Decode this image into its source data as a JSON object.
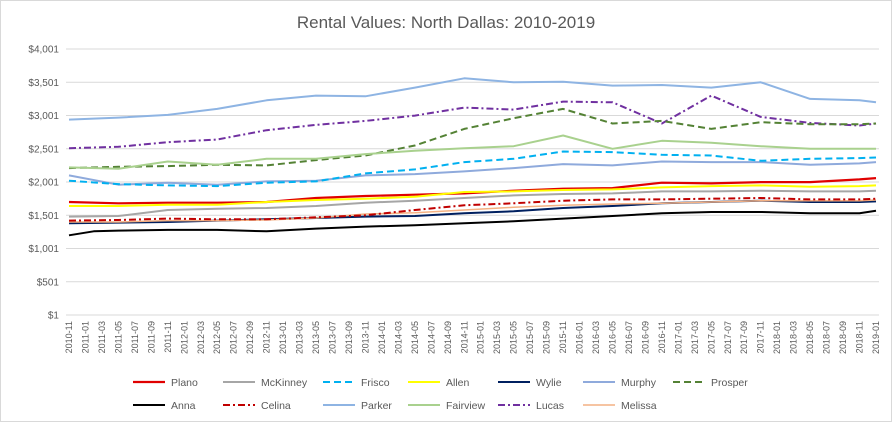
{
  "chart_data": {
    "type": "line",
    "title": "Rental Values: North Dallas: 2010-2019",
    "xlabel": "",
    "ylabel": "",
    "ylim": [
      1,
      4001
    ],
    "yticks": [
      "$1",
      "$501",
      "$1,001",
      "$1,501",
      "$2,001",
      "$2,501",
      "$3,001",
      "$3,501",
      "$4,001"
    ],
    "ytick_values": [
      1,
      501,
      1001,
      1501,
      2001,
      2501,
      3001,
      3501,
      4001
    ],
    "grid": "horizontal",
    "legend_position": "bottom",
    "x_labels": [
      "2010-11",
      "2011-01",
      "2011-03",
      "2011-05",
      "2011-07",
      "2011-09",
      "2011-11",
      "2012-01",
      "2012-03",
      "2012-05",
      "2012-07",
      "2012-09",
      "2012-11",
      "2013-01",
      "2013-03",
      "2013-05",
      "2013-07",
      "2013-09",
      "2013-11",
      "2014-01",
      "2014-03",
      "2014-05",
      "2014-07",
      "2014-09",
      "2014-11",
      "2015-01",
      "2015-03",
      "2015-05",
      "2015-07",
      "2015-09",
      "2015-11",
      "2016-01",
      "2016-03",
      "2016-05",
      "2016-07",
      "2016-09",
      "2016-11",
      "2017-01",
      "2017-03",
      "2017-05",
      "2017-07",
      "2017-09",
      "2017-11",
      "2018-01",
      "2018-03",
      "2018-05",
      "2018-07",
      "2018-09",
      "2018-11",
      "2019-01"
    ],
    "x_label_months": [
      0,
      2,
      4,
      6,
      8,
      10,
      12,
      14,
      16,
      18,
      20,
      22,
      24,
      26,
      28,
      30,
      32,
      34,
      36,
      38,
      40,
      42,
      44,
      46,
      48,
      50,
      52,
      54,
      56,
      58,
      60,
      62,
      64,
      66,
      68,
      70,
      72,
      74,
      76,
      78,
      80,
      82,
      84,
      86,
      88,
      90,
      92,
      94,
      96,
      98
    ],
    "series": [
      {
        "name": "Plano",
        "color": "#e00000",
        "dash": "solid",
        "width": 2.2,
        "x": [
          0,
          6,
          12,
          18,
          24,
          30,
          36,
          42,
          48,
          54,
          60,
          66,
          72,
          78,
          84,
          90,
          96,
          98
        ],
        "y": [
          1700,
          1680,
          1690,
          1690,
          1700,
          1760,
          1790,
          1810,
          1830,
          1870,
          1900,
          1910,
          1990,
          1980,
          2000,
          2000,
          2040,
          2060
        ]
      },
      {
        "name": "Parker",
        "color": "#8eb4e3",
        "dash": "solid",
        "width": 2,
        "x": [
          0,
          6,
          12,
          18,
          24,
          30,
          36,
          42,
          48,
          54,
          60,
          66,
          72,
          78,
          84,
          90,
          96,
          98
        ],
        "y": [
          2940,
          2970,
          3010,
          3100,
          3230,
          3300,
          3290,
          3420,
          3560,
          3500,
          3510,
          3450,
          3460,
          3420,
          3500,
          3250,
          3230,
          3200
        ]
      },
      {
        "name": "Lucas",
        "color": "#7030a0",
        "dash": "dashdot",
        "width": 2,
        "x": [
          0,
          6,
          12,
          18,
          24,
          30,
          36,
          42,
          48,
          54,
          60,
          66,
          72,
          78,
          84,
          90,
          96,
          98
        ],
        "y": [
          2510,
          2530,
          2600,
          2640,
          2780,
          2860,
          2920,
          3000,
          3120,
          3090,
          3210,
          3200,
          2880,
          3300,
          2980,
          2890,
          2850,
          2880
        ]
      },
      {
        "name": "Prosper",
        "color": "#548235",
        "dash": "dash",
        "width": 2,
        "x": [
          0,
          6,
          12,
          18,
          24,
          30,
          36,
          42,
          48,
          54,
          60,
          66,
          72,
          78,
          84,
          90,
          96,
          98
        ],
        "y": [
          2210,
          2230,
          2240,
          2260,
          2250,
          2330,
          2400,
          2550,
          2800,
          2960,
          3100,
          2880,
          2920,
          2800,
          2900,
          2870,
          2870,
          2880
        ]
      },
      {
        "name": "Fairview",
        "color": "#a9d18e",
        "dash": "solid",
        "width": 2,
        "x": [
          0,
          6,
          12,
          18,
          24,
          30,
          36,
          42,
          48,
          54,
          60,
          66,
          72,
          78,
          84,
          90,
          96,
          98
        ],
        "y": [
          2220,
          2200,
          2310,
          2260,
          2350,
          2350,
          2420,
          2470,
          2510,
          2540,
          2700,
          2500,
          2620,
          2590,
          2540,
          2500,
          2500,
          2500
        ]
      },
      {
        "name": "Murphy",
        "color": "#8faadc",
        "dash": "solid",
        "width": 2,
        "x": [
          0,
          6,
          12,
          18,
          24,
          30,
          36,
          42,
          48,
          54,
          60,
          66,
          72,
          78,
          84,
          90,
          96,
          98
        ],
        "y": [
          2100,
          1960,
          1990,
          1960,
          2010,
          2020,
          2100,
          2120,
          2160,
          2210,
          2270,
          2250,
          2310,
          2300,
          2300,
          2260,
          2280,
          2300
        ]
      },
      {
        "name": "Frisco",
        "color": "#00b0f0",
        "dash": "dash",
        "width": 2,
        "x": [
          0,
          6,
          12,
          18,
          24,
          30,
          36,
          42,
          48,
          54,
          60,
          66,
          72,
          78,
          84,
          90,
          96,
          98
        ],
        "y": [
          2020,
          1970,
          1950,
          1940,
          1990,
          2010,
          2130,
          2190,
          2300,
          2350,
          2460,
          2450,
          2410,
          2400,
          2320,
          2350,
          2360,
          2370
        ]
      },
      {
        "name": "Allen",
        "color": "#ffff00",
        "dash": "solid",
        "width": 2,
        "x": [
          0,
          6,
          12,
          18,
          24,
          30,
          36,
          42,
          48,
          54,
          60,
          66,
          72,
          78,
          84,
          90,
          96,
          98
        ],
        "y": [
          1640,
          1640,
          1660,
          1660,
          1700,
          1730,
          1750,
          1780,
          1850,
          1860,
          1880,
          1890,
          1920,
          1940,
          1950,
          1930,
          1940,
          1950
        ]
      },
      {
        "name": "McKinney",
        "color": "#a6a6a6",
        "dash": "solid",
        "width": 2,
        "x": [
          0,
          6,
          12,
          18,
          24,
          30,
          36,
          42,
          48,
          54,
          60,
          66,
          72,
          78,
          84,
          90,
          96,
          98
        ],
        "y": [
          1480,
          1490,
          1580,
          1600,
          1610,
          1640,
          1690,
          1720,
          1760,
          1800,
          1820,
          1830,
          1860,
          1860,
          1870,
          1860,
          1860,
          1870
        ]
      },
      {
        "name": "Wylie",
        "color": "#002060",
        "dash": "solid",
        "width": 2,
        "x": [
          0,
          6,
          12,
          18,
          24,
          30,
          36,
          42,
          48,
          54,
          60,
          66,
          72,
          78,
          84,
          90,
          96,
          98
        ],
        "y": [
          1380,
          1390,
          1400,
          1420,
          1440,
          1460,
          1480,
          1490,
          1530,
          1560,
          1610,
          1640,
          1680,
          1700,
          1720,
          1700,
          1700,
          1710
        ]
      },
      {
        "name": "Melissa",
        "color": "#f4b183",
        "dash": "solid",
        "width": 1.5,
        "x": [
          0,
          6,
          12,
          18,
          24,
          30,
          36,
          42,
          48,
          54,
          60,
          66,
          72,
          78,
          84,
          90,
          96,
          98
        ],
        "y": [
          1400,
          1400,
          1420,
          1420,
          1430,
          1460,
          1520,
          1540,
          1580,
          1620,
          1650,
          1670,
          1680,
          1700,
          1720,
          1720,
          1720,
          1730
        ]
      },
      {
        "name": "Celina",
        "color": "#c00000",
        "dash": "dashdot",
        "width": 2,
        "x": [
          0,
          6,
          12,
          18,
          24,
          30,
          36,
          42,
          48,
          54,
          60,
          66,
          72,
          78,
          84,
          90,
          96,
          98
        ],
        "y": [
          1420,
          1430,
          1450,
          1440,
          1440,
          1470,
          1500,
          1580,
          1650,
          1680,
          1720,
          1740,
          1740,
          1750,
          1760,
          1740,
          1740,
          1750
        ]
      },
      {
        "name": "Anna",
        "color": "#000000",
        "dash": "solid",
        "width": 2,
        "x": [
          0,
          3,
          6,
          12,
          18,
          24,
          30,
          36,
          42,
          48,
          54,
          60,
          66,
          72,
          78,
          84,
          90,
          96,
          98
        ],
        "y": [
          1200,
          1260,
          1270,
          1280,
          1280,
          1260,
          1300,
          1330,
          1350,
          1380,
          1410,
          1450,
          1490,
          1530,
          1550,
          1550,
          1530,
          1530,
          1570
        ]
      }
    ],
    "legend_order": [
      "Plano",
      "McKinney",
      "Frisco",
      "Allen",
      "Wylie",
      "Murphy",
      "Prosper",
      "Anna",
      "Celina",
      "Parker",
      "Fairview",
      "Lucas",
      "Melissa"
    ]
  }
}
